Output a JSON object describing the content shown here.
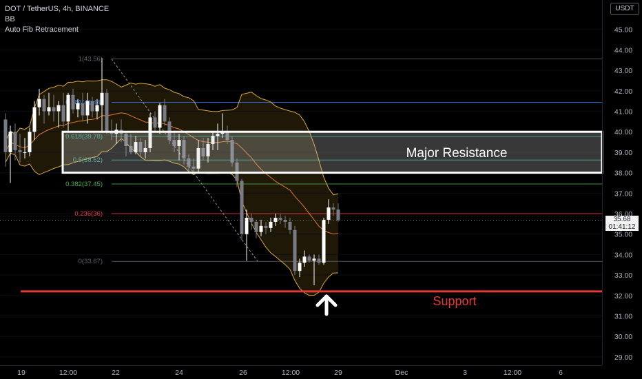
{
  "header": {
    "symbol_line": "DOT / TetherUS, 4h, BINANCE",
    "indicators": [
      "BB",
      "Auto Fib Retracement"
    ]
  },
  "currency_badge": "USDT",
  "last_price": {
    "value": "35.68",
    "countdown": "01:41:12"
  },
  "colors": {
    "bull": "#ffffff",
    "bear": "#787b86",
    "bb_band": "#d8a93c",
    "bb_fill": "rgba(140,110,30,0.22)",
    "basis": "#e07a2a",
    "support": "#e53935",
    "resistance_box": "#ffffff",
    "fib_diag": "#9598a1"
  },
  "annotations": {
    "resistance_label": "Major Resistance",
    "support_label": "Support",
    "support_price": 32.2,
    "resistance_zone": [
      38.0,
      40.0
    ]
  },
  "chart_data": {
    "type": "candlestick",
    "ylim": [
      28.6,
      46.6
    ],
    "y_ticks": [
      "29.00",
      "30.00",
      "31.00",
      "32.00",
      "33.00",
      "34.00",
      "35.00",
      "36.00",
      "37.00",
      "38.00",
      "39.00",
      "40.00",
      "41.00",
      "42.00",
      "43.00",
      "44.00",
      "45.00"
    ],
    "x_labels": [
      "19",
      "12:00",
      "22",
      "24",
      "26",
      "12:00",
      "29",
      "Dec",
      "3",
      "12:00",
      "6"
    ],
    "fib_levels": [
      {
        "label": "1(43.56)",
        "price": 43.56,
        "color": "#5d606b"
      },
      {
        "label": "0.786(41.44)",
        "price": 41.44,
        "color": "#3179f5"
      },
      {
        "label": "0.618(39.78)",
        "price": 39.78,
        "color": "#26a69a"
      },
      {
        "label": "0.5(38.62)",
        "price": 38.62,
        "color": "#26a69a"
      },
      {
        "label": "0.382(37.45)",
        "price": 37.45,
        "color": "#4caf50"
      },
      {
        "label": "0.236(36)",
        "price": 36.0,
        "color": "#f23645"
      },
      {
        "label": "0(33.67)",
        "price": 33.67,
        "color": "#5d606b"
      }
    ],
    "candles": [
      {
        "o": 40.6,
        "h": 40.9,
        "l": 38.3,
        "c": 39.0
      },
      {
        "o": 39.0,
        "h": 40.3,
        "l": 37.5,
        "c": 40.0
      },
      {
        "o": 40.0,
        "h": 40.4,
        "l": 38.6,
        "c": 39.1
      },
      {
        "o": 39.1,
        "h": 39.9,
        "l": 38.5,
        "c": 39.0
      },
      {
        "o": 39.0,
        "h": 39.7,
        "l": 38.7,
        "c": 39.0
      },
      {
        "o": 39.0,
        "h": 40.2,
        "l": 38.8,
        "c": 40.0
      },
      {
        "o": 40.0,
        "h": 41.5,
        "l": 39.6,
        "c": 41.2
      },
      {
        "o": 41.2,
        "h": 42.1,
        "l": 40.8,
        "c": 41.6
      },
      {
        "o": 41.6,
        "h": 41.8,
        "l": 40.4,
        "c": 41.0
      },
      {
        "o": 41.0,
        "h": 41.9,
        "l": 40.8,
        "c": 41.2
      },
      {
        "o": 41.2,
        "h": 41.8,
        "l": 40.5,
        "c": 41.0
      },
      {
        "o": 41.0,
        "h": 41.5,
        "l": 40.2,
        "c": 41.3
      },
      {
        "o": 41.3,
        "h": 41.9,
        "l": 40.2,
        "c": 40.5
      },
      {
        "o": 40.5,
        "h": 41.9,
        "l": 40.0,
        "c": 41.8
      },
      {
        "o": 41.8,
        "h": 42.1,
        "l": 40.9,
        "c": 41.1
      },
      {
        "o": 41.1,
        "h": 41.6,
        "l": 40.7,
        "c": 41.4
      },
      {
        "o": 41.4,
        "h": 41.9,
        "l": 40.5,
        "c": 40.8
      },
      {
        "o": 40.8,
        "h": 41.9,
        "l": 40.4,
        "c": 41.5
      },
      {
        "o": 41.5,
        "h": 41.7,
        "l": 40.7,
        "c": 41.0
      },
      {
        "o": 41.0,
        "h": 41.6,
        "l": 40.6,
        "c": 41.3
      },
      {
        "o": 41.3,
        "h": 43.6,
        "l": 40.0,
        "c": 41.9
      },
      {
        "o": 41.9,
        "h": 42.1,
        "l": 39.9,
        "c": 40.0
      },
      {
        "o": 40.0,
        "h": 40.6,
        "l": 39.6,
        "c": 39.9
      },
      {
        "o": 39.9,
        "h": 40.4,
        "l": 39.4,
        "c": 40.1
      },
      {
        "o": 40.1,
        "h": 40.6,
        "l": 39.5,
        "c": 39.9
      },
      {
        "o": 39.9,
        "h": 40.0,
        "l": 38.8,
        "c": 39.3
      },
      {
        "o": 39.3,
        "h": 39.9,
        "l": 38.9,
        "c": 39.0
      },
      {
        "o": 39.0,
        "h": 39.8,
        "l": 38.9,
        "c": 39.5
      },
      {
        "o": 39.5,
        "h": 39.7,
        "l": 38.8,
        "c": 39.0
      },
      {
        "o": 39.0,
        "h": 39.6,
        "l": 38.7,
        "c": 39.2
      },
      {
        "o": 39.2,
        "h": 40.9,
        "l": 39.0,
        "c": 40.7
      },
      {
        "o": 40.7,
        "h": 41.0,
        "l": 40.0,
        "c": 40.2
      },
      {
        "o": 40.2,
        "h": 41.4,
        "l": 39.9,
        "c": 41.3
      },
      {
        "o": 41.3,
        "h": 41.6,
        "l": 40.3,
        "c": 40.5
      },
      {
        "o": 40.5,
        "h": 40.7,
        "l": 39.4,
        "c": 39.6
      },
      {
        "o": 39.6,
        "h": 40.0,
        "l": 39.0,
        "c": 39.3
      },
      {
        "o": 39.3,
        "h": 39.9,
        "l": 38.6,
        "c": 39.6
      },
      {
        "o": 39.6,
        "h": 39.8,
        "l": 38.4,
        "c": 38.7
      },
      {
        "o": 38.7,
        "h": 38.9,
        "l": 38.1,
        "c": 38.3
      },
      {
        "o": 38.3,
        "h": 38.7,
        "l": 38.0,
        "c": 38.2
      },
      {
        "o": 38.2,
        "h": 39.6,
        "l": 38.0,
        "c": 39.2
      },
      {
        "o": 39.2,
        "h": 39.7,
        "l": 38.6,
        "c": 38.8
      },
      {
        "o": 38.8,
        "h": 39.7,
        "l": 38.5,
        "c": 39.4
      },
      {
        "o": 39.4,
        "h": 40.0,
        "l": 39.1,
        "c": 39.8
      },
      {
        "o": 39.8,
        "h": 40.4,
        "l": 39.1,
        "c": 39.9
      },
      {
        "o": 39.9,
        "h": 40.9,
        "l": 39.7,
        "c": 40.0
      },
      {
        "o": 40.0,
        "h": 40.3,
        "l": 39.4,
        "c": 39.6
      },
      {
        "o": 39.6,
        "h": 39.8,
        "l": 38.3,
        "c": 38.5
      },
      {
        "o": 38.5,
        "h": 38.7,
        "l": 37.3,
        "c": 37.6
      },
      {
        "o": 37.6,
        "h": 37.7,
        "l": 34.7,
        "c": 35.0
      },
      {
        "o": 35.0,
        "h": 36.2,
        "l": 33.7,
        "c": 35.8
      },
      {
        "o": 35.8,
        "h": 36.0,
        "l": 35.2,
        "c": 35.6
      },
      {
        "o": 35.6,
        "h": 35.7,
        "l": 34.8,
        "c": 35.1
      },
      {
        "o": 35.1,
        "h": 35.7,
        "l": 34.9,
        "c": 35.4
      },
      {
        "o": 35.4,
        "h": 35.6,
        "l": 35.0,
        "c": 35.3
      },
      {
        "o": 35.3,
        "h": 35.8,
        "l": 35.1,
        "c": 35.6
      },
      {
        "o": 35.6,
        "h": 36.0,
        "l": 35.4,
        "c": 35.8
      },
      {
        "o": 35.8,
        "h": 36.0,
        "l": 35.5,
        "c": 35.7
      },
      {
        "o": 35.7,
        "h": 35.9,
        "l": 35.3,
        "c": 35.6
      },
      {
        "o": 35.6,
        "h": 35.8,
        "l": 35.0,
        "c": 35.2
      },
      {
        "o": 35.2,
        "h": 35.4,
        "l": 33.0,
        "c": 33.2
      },
      {
        "o": 33.2,
        "h": 33.8,
        "l": 32.9,
        "c": 33.6
      },
      {
        "o": 33.6,
        "h": 34.2,
        "l": 33.4,
        "c": 33.9
      },
      {
        "o": 33.9,
        "h": 34.0,
        "l": 33.6,
        "c": 33.7
      },
      {
        "o": 33.7,
        "h": 34.0,
        "l": 32.5,
        "c": 33.8
      },
      {
        "o": 33.8,
        "h": 34.0,
        "l": 33.5,
        "c": 33.6
      },
      {
        "o": 33.6,
        "h": 35.8,
        "l": 33.5,
        "c": 35.7
      },
      {
        "o": 35.7,
        "h": 36.7,
        "l": 35.5,
        "c": 36.3
      },
      {
        "o": 36.3,
        "h": 36.5,
        "l": 35.9,
        "c": 36.2
      },
      {
        "o": 36.2,
        "h": 36.5,
        "l": 35.6,
        "c": 35.68
      }
    ]
  }
}
